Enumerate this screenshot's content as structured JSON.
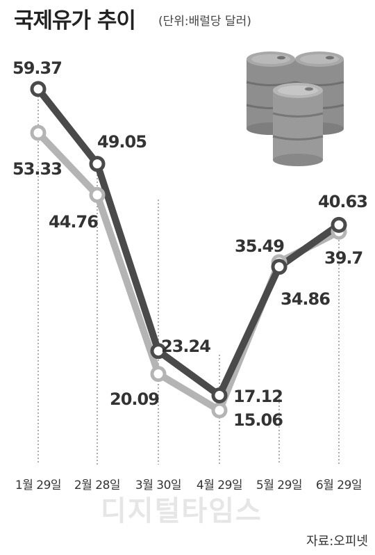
{
  "title": "국제유가 추이",
  "unit": "(단위:배럴당 달러)",
  "source": "자료:오피넷",
  "watermark": "디지털타임스",
  "chart_data": {
    "type": "line",
    "categories": [
      "1월 29일",
      "2월 28일",
      "3월 30일",
      "4월 29일",
      "5월 29일",
      "6월 29일"
    ],
    "series": [
      {
        "values": [
          59.37,
          49.05,
          23.24,
          17.12,
          34.86,
          40.63
        ],
        "color": "#4a4a4a"
      },
      {
        "values": [
          53.33,
          44.76,
          20.09,
          15.06,
          35.49,
          39.7
        ],
        "color": "#b4b4b4"
      }
    ],
    "ylim": [
      10,
      65
    ],
    "grid": "dotted vertical lines at each category"
  }
}
